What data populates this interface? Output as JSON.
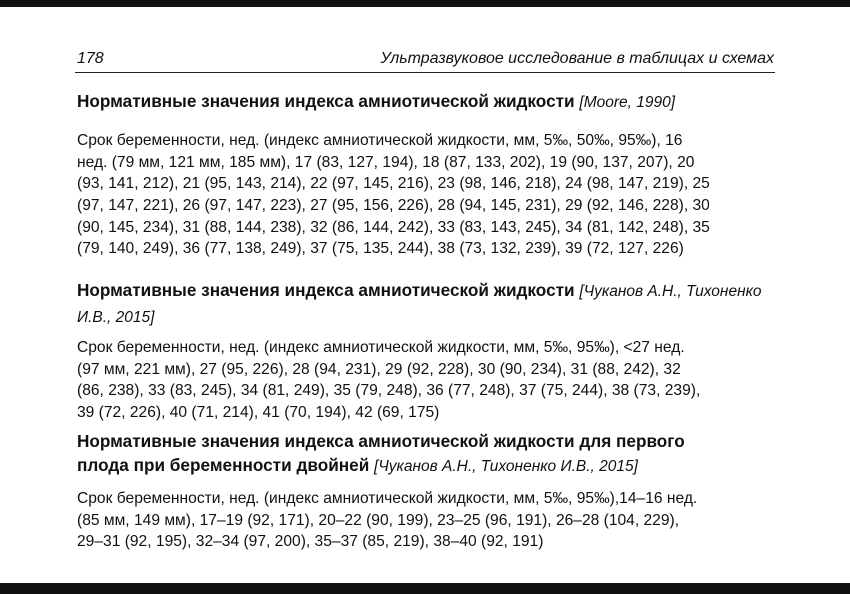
{
  "header": {
    "page_number": "178",
    "running_title": "Ультразвуковое исследование в таблицах и схемах"
  },
  "sections": [
    {
      "title": "Нормативные значения индекса амниотической жидкости",
      "reference": "[Moore, 1990]",
      "lines": [
        "Срок беременности, нед. (индекс амниотической жидкости, мм, 5‰, 50‰, 95‰), 16",
        "нед. (79 мм, 121 мм, 185 мм), 17 (83, 127, 194), 18 (87, 133, 202), 19 (90, 137, 207), 20",
        "(93, 141, 212), 21 (95, 143, 214), 22 (97, 145, 216), 23 (98, 146, 218), 24 (98, 147, 219), 25",
        "(97, 147, 221), 26 (97, 147, 223), 27 (95, 156, 226), 28 (94, 145, 231), 29 (92, 146, 228), 30",
        "(90, 145, 234), 31 (88, 144, 238), 32 (86, 144, 242), 33 (83, 143, 245), 34 (81, 142, 248), 35",
        "(79, 140, 249), 36 (77, 138, 249), 37 (75, 135, 244), 38 (73, 132, 239), 39 (72, 127, 226)"
      ]
    },
    {
      "title": "Нормативные значения индекса амниотической жидкости",
      "reference": "[Чуканов А.Н., Тихоненко И.В., 2015]",
      "lines": [
        "Срок беременности, нед. (индекс амниотической жидкости, мм, 5‰, 95‰), <27 нед.",
        "(97 мм, 221 мм), 27 (95, 226), 28 (94, 231), 29 (92, 228), 30 (90, 234), 31 (88, 242), 32",
        "(86, 238), 33 (83, 245), 34 (81, 249), 35 (79, 248), 36 (77, 248), 37 (75, 244), 38 (73, 239),",
        "39 (72, 226), 40 (71, 214), 41 (70, 194), 42 (69, 175)"
      ]
    },
    {
      "title_line1": "Нормативные значения индекса амниотической жидкости для первого",
      "title_line2": "плода при беременности двойней",
      "reference": "[Чуканов А.Н., Тихоненко И.В., 2015]",
      "lines": [
        "Срок беременности, нед. (индекс амниотической жидкости, мм, 5‰, 95‰),14–16 нед.",
        "(85 мм, 149 мм), 17–19 (92, 171), 20–22 (90, 199), 23–25 (96, 191), 26–28 (104, 229),",
        "29–31 (92, 195), 32–34 (97, 200), 35–37 (85, 219), 38–40 (92, 191)"
      ]
    }
  ]
}
